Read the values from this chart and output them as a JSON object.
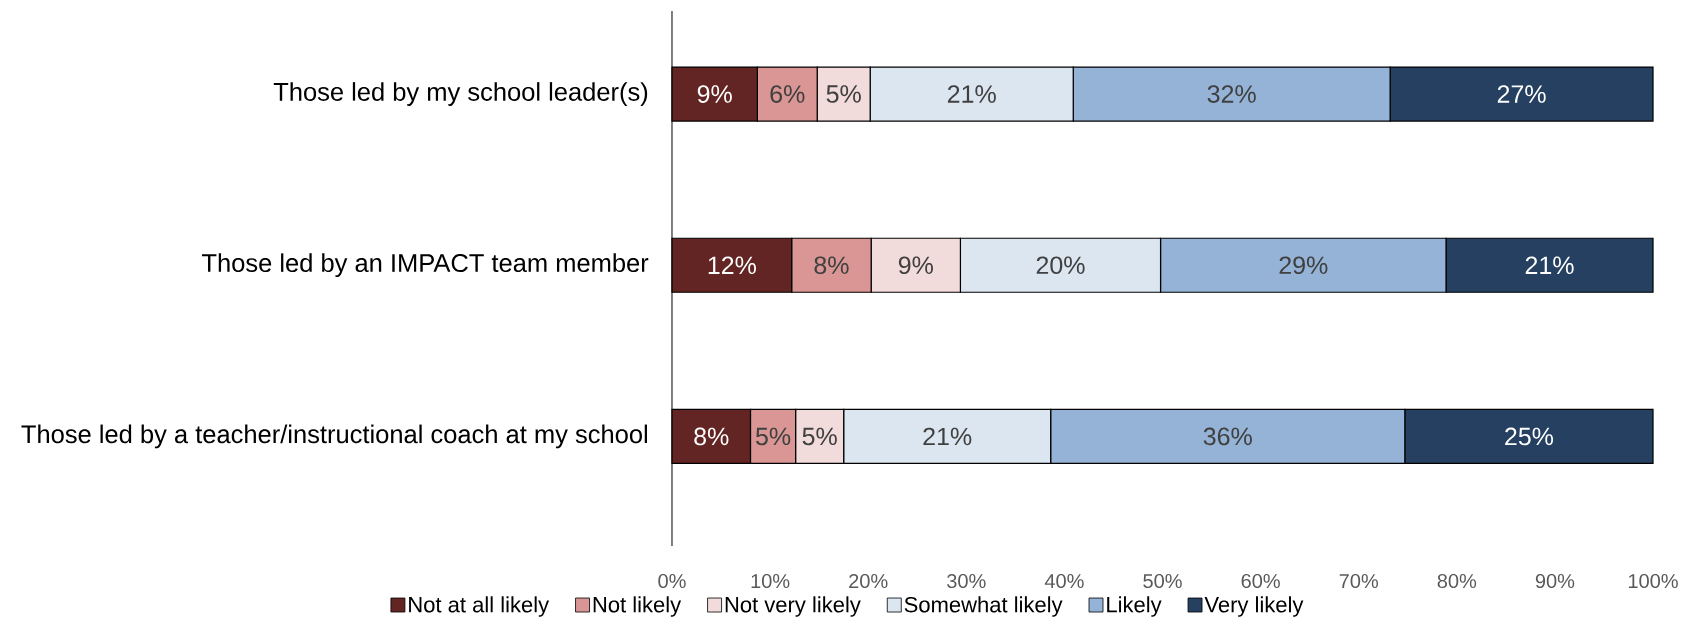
{
  "chart_data": {
    "type": "bar",
    "orientation": "horizontal",
    "stacked": true,
    "categories": [
      "Those led by my school leader(s)",
      "Those led by an IMPACT team member",
      "Those led by a teacher/instructional coach at my school"
    ],
    "series": [
      {
        "name": "Not at all likely",
        "color": "#632523",
        "values": [
          8.7,
          12.2,
          8.0
        ],
        "value_labels": [
          "9%",
          "12%",
          "8%"
        ]
      },
      {
        "name": "Not likely",
        "color": "#da9694",
        "values": [
          6.1,
          8.1,
          4.6
        ],
        "value_labels": [
          "6%",
          "8%",
          "5%"
        ]
      },
      {
        "name": "Not very likely",
        "color": "#f2dcdb",
        "values": [
          5.4,
          9.1,
          4.9
        ],
        "value_labels": [
          "5%",
          "9%",
          "5%"
        ]
      },
      {
        "name": "Somewhat likely",
        "color": "#dce6f1",
        "values": [
          20.7,
          20.4,
          21.1
        ],
        "value_labels": [
          "21%",
          "20%",
          "21%"
        ]
      },
      {
        "name": "Likely",
        "color": "#95b3d7",
        "values": [
          32.3,
          29.1,
          36.1
        ],
        "value_labels": [
          "32%",
          "29%",
          "36%"
        ]
      },
      {
        "name": "Very likely",
        "color": "#254061",
        "values": [
          26.8,
          21.1,
          25.3
        ],
        "value_labels": [
          "27%",
          "21%",
          "25%"
        ]
      }
    ],
    "xlim": [
      0,
      100
    ],
    "xticks": [
      {
        "value": 0,
        "label": "0%"
      },
      {
        "value": 10,
        "label": "10%"
      },
      {
        "value": 20,
        "label": "20%"
      },
      {
        "value": 30,
        "label": "30%"
      },
      {
        "value": 40,
        "label": "40%"
      },
      {
        "value": 50,
        "label": "50%"
      },
      {
        "value": 60,
        "label": "60%"
      },
      {
        "value": 70,
        "label": "70%"
      },
      {
        "value": 80,
        "label": "80%"
      },
      {
        "value": 90,
        "label": "90%"
      },
      {
        "value": 100,
        "label": "100%"
      }
    ],
    "legend": "bottom"
  }
}
